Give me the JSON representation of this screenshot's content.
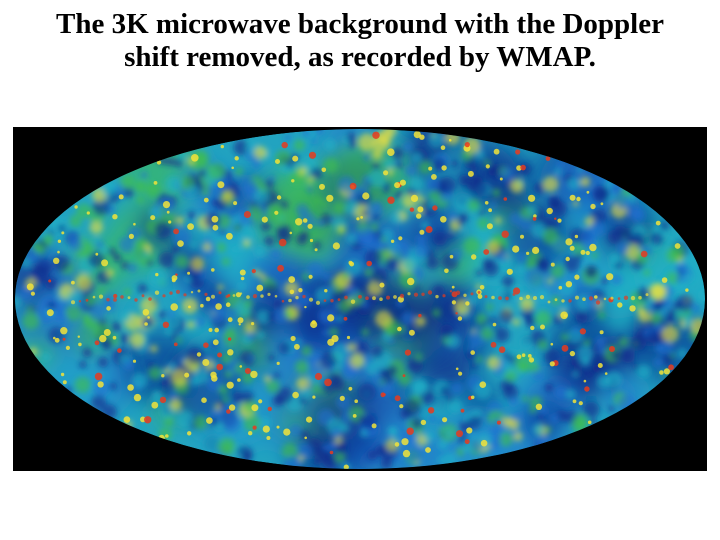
{
  "slide": {
    "title_line1": "The 3K microwave background with the Doppler",
    "title_line2": "shift removed, as recorded by WMAP."
  },
  "image": {
    "subject": "cmb-sky-map",
    "projection": "mollweide",
    "palette": {
      "background": "#000000",
      "deep_blue": "#0b2a8a",
      "blue": "#1f6fd0",
      "cyan": "#22b3c8",
      "green": "#3fbf4a",
      "yellow": "#f2e33a",
      "red": "#e63b1f"
    }
  }
}
